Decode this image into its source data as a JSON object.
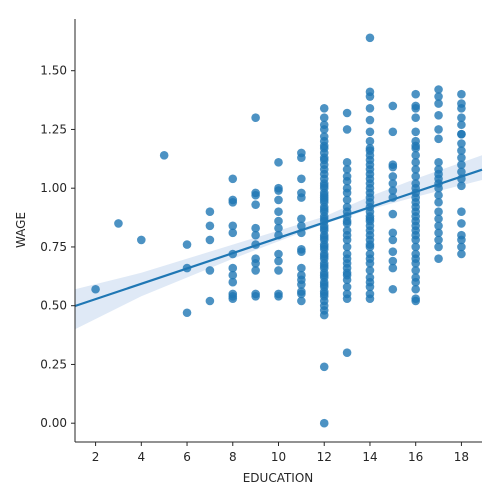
{
  "chart_data": {
    "type": "scatter",
    "title": "",
    "xlabel": "EDUCATION",
    "ylabel": "WAGE",
    "xlim": [
      1.1,
      18.9
    ],
    "ylim": [
      -0.08,
      1.72
    ],
    "xticks": [
      2,
      4,
      6,
      8,
      10,
      12,
      14,
      16,
      18
    ],
    "yticks": [
      0.0,
      0.25,
      0.5,
      0.75,
      1.0,
      1.25,
      1.5
    ],
    "xtick_labels": [
      "2",
      "4",
      "6",
      "8",
      "10",
      "12",
      "14",
      "16",
      "18"
    ],
    "ytick_labels": [
      "0.00",
      "0.25",
      "0.50",
      "0.75",
      "1.00",
      "1.25",
      "1.50"
    ],
    "grid": false,
    "legend": "none",
    "colors": {
      "points": "#1f77b4",
      "line": "#1f77b4",
      "ci_band": "#aec7e8"
    },
    "regression": {
      "x_range": [
        1.1,
        18.9
      ],
      "intercept": 0.4628,
      "slope": 0.0326,
      "ci_lower": [
        [
          1.1,
          0.4
        ],
        [
          4,
          0.54
        ],
        [
          8,
          0.7
        ],
        [
          12,
          0.848
        ],
        [
          14,
          0.91
        ],
        [
          16,
          0.963
        ],
        [
          18.9,
          1.035
        ]
      ],
      "ci_upper": [
        [
          1.1,
          0.57
        ],
        [
          4,
          0.64
        ],
        [
          8,
          0.76
        ],
        [
          12,
          0.879
        ],
        [
          14,
          0.965
        ],
        [
          16,
          1.04
        ],
        [
          18.9,
          1.14
        ]
      ]
    },
    "x": [
      2,
      3,
      4,
      5,
      6,
      6,
      6,
      7,
      7,
      7,
      7,
      7,
      8,
      8,
      8,
      8,
      8,
      8,
      8,
      8,
      8,
      8,
      8,
      8,
      9,
      9,
      9,
      9,
      9,
      9,
      9,
      9,
      9,
      9,
      9,
      9,
      10,
      10,
      10,
      10,
      10,
      10,
      10,
      10,
      10,
      10,
      10,
      10,
      10,
      11,
      11,
      11,
      11,
      11,
      11,
      11,
      11,
      11,
      11,
      11,
      11,
      11,
      11,
      11,
      11,
      11,
      12,
      12,
      12,
      12,
      12,
      12,
      12,
      12,
      12,
      12,
      12,
      12,
      12,
      12,
      12,
      12,
      12,
      12,
      12,
      12,
      12,
      12,
      12,
      12,
      12,
      12,
      12,
      12,
      12,
      12,
      12,
      12,
      12,
      12,
      12,
      12,
      12,
      12,
      12,
      12,
      12,
      12,
      12,
      12,
      12,
      12,
      12,
      12,
      12,
      12,
      12,
      12,
      12,
      12,
      12,
      12,
      12,
      12,
      12,
      13,
      13,
      13,
      13,
      13,
      13,
      13,
      13,
      13,
      13,
      13,
      13,
      13,
      13,
      13,
      13,
      13,
      13,
      13,
      13,
      13,
      13,
      13,
      13,
      13,
      13,
      13,
      13,
      13,
      14,
      14,
      14,
      14,
      14,
      14,
      14,
      14,
      14,
      14,
      14,
      14,
      14,
      14,
      14,
      14,
      14,
      14,
      14,
      14,
      14,
      14,
      14,
      14,
      14,
      14,
      14,
      14,
      14,
      14,
      14,
      14,
      14,
      14,
      14,
      14,
      14,
      14,
      14,
      14,
      15,
      15,
      15,
      15,
      15,
      15,
      15,
      15,
      15,
      15,
      15,
      15,
      15,
      15,
      15,
      16,
      16,
      16,
      16,
      16,
      16,
      16,
      16,
      16,
      16,
      16,
      16,
      16,
      16,
      16,
      16,
      16,
      16,
      16,
      16,
      16,
      16,
      16,
      16,
      16,
      16,
      16,
      16,
      16,
      16,
      16,
      16,
      16,
      16,
      16,
      17,
      17,
      17,
      17,
      17,
      17,
      17,
      17,
      17,
      17,
      17,
      17,
      17,
      17,
      17,
      17,
      17,
      17,
      17,
      17,
      17,
      18,
      18,
      18,
      18,
      18,
      18,
      18,
      18,
      18,
      18,
      18,
      18,
      18,
      18,
      18,
      18,
      18,
      18,
      18,
      18
    ],
    "y": [
      0.57,
      0.85,
      0.78,
      1.14,
      0.76,
      0.66,
      0.47,
      0.9,
      0.84,
      0.78,
      0.65,
      0.52,
      1.04,
      0.95,
      0.94,
      0.84,
      0.81,
      0.72,
      0.66,
      0.63,
      0.6,
      0.55,
      0.53,
      0.54,
      1.3,
      0.98,
      0.97,
      0.93,
      0.83,
      0.8,
      0.76,
      0.7,
      0.68,
      0.65,
      0.55,
      0.54,
      1.11,
      1.0,
      0.99,
      0.95,
      0.9,
      0.86,
      0.83,
      0.8,
      0.72,
      0.69,
      0.65,
      0.55,
      0.54,
      1.15,
      1.13,
      1.04,
      0.98,
      0.96,
      0.87,
      0.84,
      0.81,
      0.74,
      0.73,
      0.66,
      0.63,
      0.61,
      0.59,
      0.56,
      0.55,
      0.52,
      1.34,
      1.3,
      1.27,
      1.22,
      1.2,
      1.15,
      1.12,
      1.1,
      1.08,
      1.06,
      1.04,
      1.02,
      1.0,
      0.98,
      0.96,
      0.94,
      0.92,
      0.9,
      0.88,
      0.86,
      0.84,
      0.82,
      0.8,
      0.78,
      0.76,
      0.74,
      0.72,
      0.7,
      0.68,
      0.66,
      0.64,
      0.62,
      0.6,
      0.58,
      0.56,
      0.54,
      0.52,
      0.5,
      0.48,
      0.46,
      0.24,
      0.0,
      1.18,
      1.13,
      1.01,
      0.95,
      0.91,
      0.87,
      0.83,
      0.79,
      0.75,
      0.71,
      0.67,
      0.63,
      0.59,
      0.55,
      1.25,
      1.17,
      0.97,
      1.32,
      1.25,
      1.11,
      1.08,
      1.05,
      1.03,
      1.0,
      0.98,
      0.95,
      0.92,
      0.9,
      0.88,
      0.85,
      0.8,
      0.78,
      0.75,
      0.72,
      0.7,
      0.66,
      0.63,
      0.61,
      0.58,
      0.55,
      0.53,
      0.3,
      0.86,
      0.82,
      0.68,
      0.64,
      1.64,
      1.41,
      1.39,
      1.34,
      1.29,
      1.24,
      1.2,
      1.17,
      1.14,
      1.12,
      1.1,
      1.08,
      1.06,
      1.04,
      1.02,
      1.0,
      0.98,
      0.96,
      0.94,
      0.92,
      0.9,
      0.88,
      0.86,
      0.84,
      0.82,
      0.8,
      0.78,
      0.75,
      0.72,
      0.7,
      0.68,
      0.65,
      0.62,
      0.6,
      0.58,
      0.55,
      0.53,
      1.16,
      0.87,
      0.76,
      1.35,
      1.24,
      1.1,
      1.09,
      1.05,
      1.02,
      0.99,
      0.96,
      0.89,
      0.81,
      0.78,
      0.73,
      0.69,
      0.66,
      0.57,
      1.4,
      1.35,
      1.3,
      1.24,
      1.2,
      1.17,
      1.14,
      1.11,
      1.08,
      1.05,
      1.02,
      1.0,
      0.98,
      0.96,
      0.94,
      0.92,
      0.9,
      0.88,
      0.86,
      0.84,
      0.82,
      0.8,
      0.78,
      0.75,
      0.72,
      0.7,
      0.68,
      0.65,
      0.62,
      0.6,
      0.57,
      0.53,
      0.52,
      1.34,
      1.18,
      1.42,
      1.36,
      1.31,
      1.25,
      1.21,
      1.11,
      1.08,
      1.06,
      1.04,
      1.02,
      1.0,
      0.97,
      0.94,
      0.9,
      0.87,
      0.84,
      0.81,
      0.78,
      0.75,
      0.7,
      1.39,
      1.4,
      1.36,
      1.34,
      1.3,
      1.27,
      1.23,
      1.19,
      1.16,
      1.13,
      1.1,
      1.07,
      1.04,
      1.01,
      0.9,
      0.85,
      0.8,
      0.78,
      0.75,
      0.72,
      1.23
    ]
  }
}
